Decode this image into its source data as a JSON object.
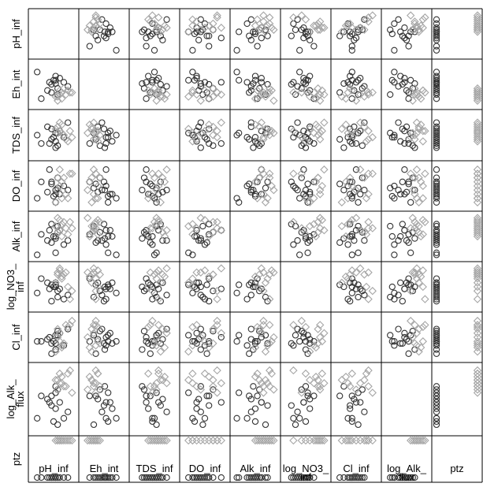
{
  "chart_data": {
    "type": "scatter",
    "title": "",
    "variables": [
      {
        "key": "pH_inf",
        "label_lines": [
          "pH_inf"
        ]
      },
      {
        "key": "Eh_int",
        "label_lines": [
          "Eh_int"
        ]
      },
      {
        "key": "TDS_inf",
        "label_lines": [
          "TDS_inf"
        ]
      },
      {
        "key": "DO_inf",
        "label_lines": [
          "DO_inf"
        ]
      },
      {
        "key": "Alk_inf",
        "label_lines": [
          "Alk_inf"
        ]
      },
      {
        "key": "log_NO3_inf",
        "label_lines": [
          "log_NO3_",
          "inf"
        ]
      },
      {
        "key": "Cl_inf",
        "label_lines": [
          "Cl_inf"
        ]
      },
      {
        "key": "log_Alk_flux",
        "label_lines": [
          "log_Alk_",
          "flux"
        ]
      },
      {
        "key": "ptz",
        "label_lines": [
          "ptz"
        ]
      }
    ],
    "groups": [
      {
        "marker": "circle",
        "color": "#333333"
      },
      {
        "marker": "diamond",
        "color": "#a6a6a6"
      }
    ],
    "grid": false,
    "legend": "none",
    "series": [
      {
        "group": 0,
        "values": [
          [
            0.4,
            0.55,
            0.3,
            0.9,
            0.65,
            0.45,
            0.5,
            0.45,
            0
          ],
          [
            0.1,
            0.8,
            0.5,
            0.2,
            0.05,
            0.35,
            0.4,
            0.2,
            0
          ],
          [
            0.55,
            0.52,
            0.2,
            0.4,
            0.45,
            0.5,
            0.2,
            0.7,
            0
          ],
          [
            0.55,
            0.7,
            0.35,
            0.3,
            0.5,
            0.6,
            0.35,
            0.35,
            0
          ],
          [
            0.6,
            0.25,
            0.55,
            0.45,
            0.75,
            0.25,
            0.55,
            0.1,
            0
          ],
          [
            0.45,
            0.5,
            0.65,
            0.6,
            0.8,
            0.15,
            0.35,
            0.4,
            0
          ],
          [
            0.45,
            0.3,
            0.4,
            0.55,
            0.35,
            0.55,
            0.1,
            0.55,
            0
          ],
          [
            0.6,
            0.4,
            0.25,
            0.7,
            0.6,
            0.4,
            0.65,
            0.65,
            0
          ],
          [
            0.5,
            0.6,
            0.45,
            0.25,
            0.5,
            0.5,
            0.4,
            0.15,
            0
          ],
          [
            0.35,
            0.35,
            0.7,
            0.35,
            0.4,
            0.6,
            0.45,
            0.5,
            0
          ],
          [
            0.75,
            0.55,
            0.45,
            0.5,
            0.3,
            0.2,
            0.3,
            0.2,
            0
          ],
          [
            0.65,
            0.65,
            0.6,
            0.3,
            0.65,
            0.45,
            0.6,
            0.45,
            0
          ],
          [
            0.2,
            0.15,
            0.3,
            0.6,
            0.55,
            0.7,
            0.4,
            0.55,
            0
          ],
          [
            0.85,
            0.45,
            0.8,
            0.4,
            0.4,
            0.3,
            0.7,
            0.3,
            0
          ],
          [
            0.55,
            0.6,
            0.55,
            0.1,
            0.1,
            0.55,
            0.55,
            0.6,
            0
          ]
        ]
      },
      {
        "group": 1,
        "values": [
          [
            0.6,
            0.2,
            0.7,
            0.7,
            0.6,
            0.8,
            0.7,
            0.8,
            1
          ],
          [
            0.7,
            0.3,
            0.55,
            0.2,
            0.8,
            0.7,
            0.3,
            0.75,
            1
          ],
          [
            0.8,
            0.25,
            0.4,
            0.3,
            0.7,
            0.85,
            0.8,
            0.7,
            1
          ],
          [
            0.65,
            0.35,
            0.6,
            0.5,
            0.9,
            0.9,
            0.4,
            0.9,
            1
          ],
          [
            0.7,
            0.15,
            0.75,
            0.6,
            0.5,
            0.75,
            0.25,
            0.85,
            1
          ],
          [
            0.95,
            0.3,
            0.45,
            0.8,
            0.7,
            0.4,
            0.9,
            0.6,
            1
          ],
          [
            0.55,
            0.2,
            0.65,
            0.1,
            0.75,
            0.6,
            0.15,
            0.8,
            1
          ],
          [
            0.75,
            0.4,
            0.5,
            0.7,
            0.85,
            0.8,
            0.35,
            0.7,
            1
          ],
          [
            0.65,
            0.25,
            0.8,
            0.9,
            0.65,
            0.95,
            0.6,
            0.75,
            1
          ],
          [
            0.85,
            0.35,
            0.35,
            0.2,
            0.55,
            0.5,
            0.75,
            0.9,
            1
          ],
          [
            0.6,
            0.1,
            0.55,
            0.4,
            0.95,
            0.85,
            0.5,
            0.65,
            1
          ],
          [
            0.9,
            0.3,
            0.6,
            0.8,
            0.85,
            0.2,
            0.8,
            0.95,
            1
          ]
        ]
      }
    ]
  }
}
